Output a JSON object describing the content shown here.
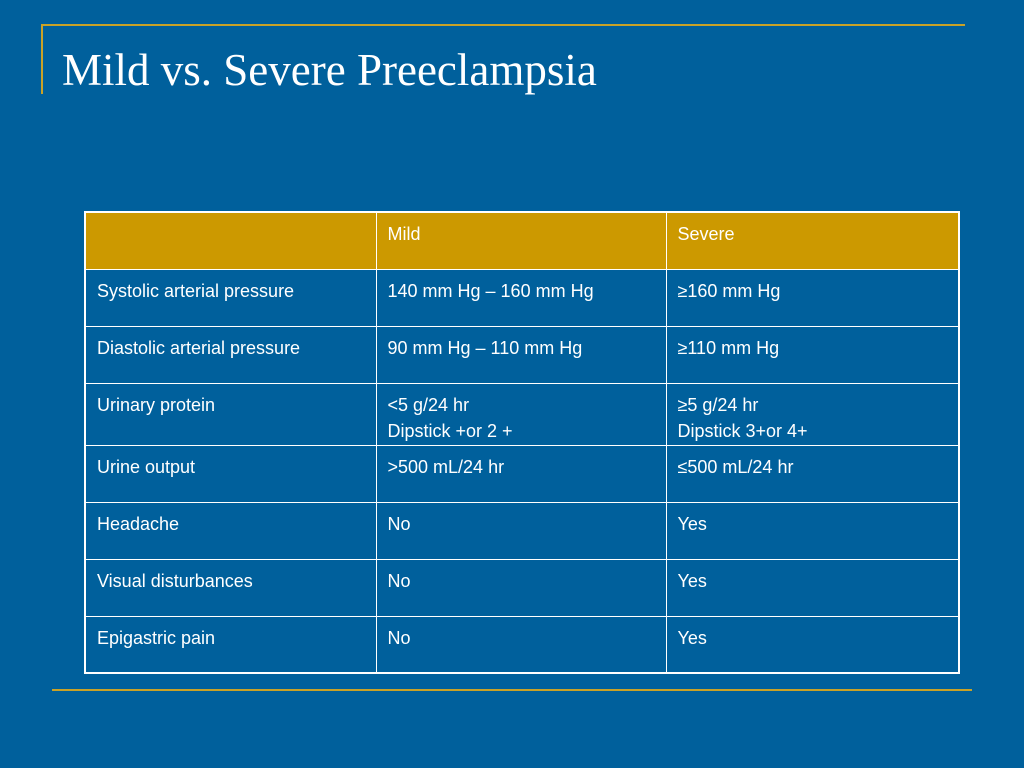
{
  "slide": {
    "title": "Mild vs. Severe Preeclampsia"
  },
  "table": {
    "headers": [
      "",
      "Mild",
      "Severe"
    ],
    "rows": [
      {
        "criterion": "Systolic arterial pressure",
        "mild": [
          "140 mm Hg – 160 mm Hg"
        ],
        "severe": [
          "≥160 mm Hg"
        ]
      },
      {
        "criterion": "Diastolic arterial pressure",
        "mild": [
          "90 mm Hg – 110 mm Hg"
        ],
        "severe": [
          "≥110 mm Hg"
        ]
      },
      {
        "criterion": "Urinary protein",
        "mild": [
          "<5 g/24 hr",
          "Dipstick +or 2 +"
        ],
        "severe": [
          "≥5 g/24 hr",
          "Dipstick 3+or 4+"
        ]
      },
      {
        "criterion": "Urine output",
        "mild": [
          ">500 mL/24 hr"
        ],
        "severe": [
          "≤500 mL/24 hr"
        ]
      },
      {
        "criterion": "Headache",
        "mild": [
          "No"
        ],
        "severe": [
          "Yes"
        ]
      },
      {
        "criterion": "Visual disturbances",
        "mild": [
          "No"
        ],
        "severe": [
          "Yes"
        ]
      },
      {
        "criterion": "Epigastric pain",
        "mild": [
          "No"
        ],
        "severe": [
          "Yes"
        ]
      }
    ]
  },
  "colors": {
    "background": "#00609c",
    "accent_line": "#c9a227",
    "header_fill": "#cc9900",
    "text": "#ffffff"
  }
}
